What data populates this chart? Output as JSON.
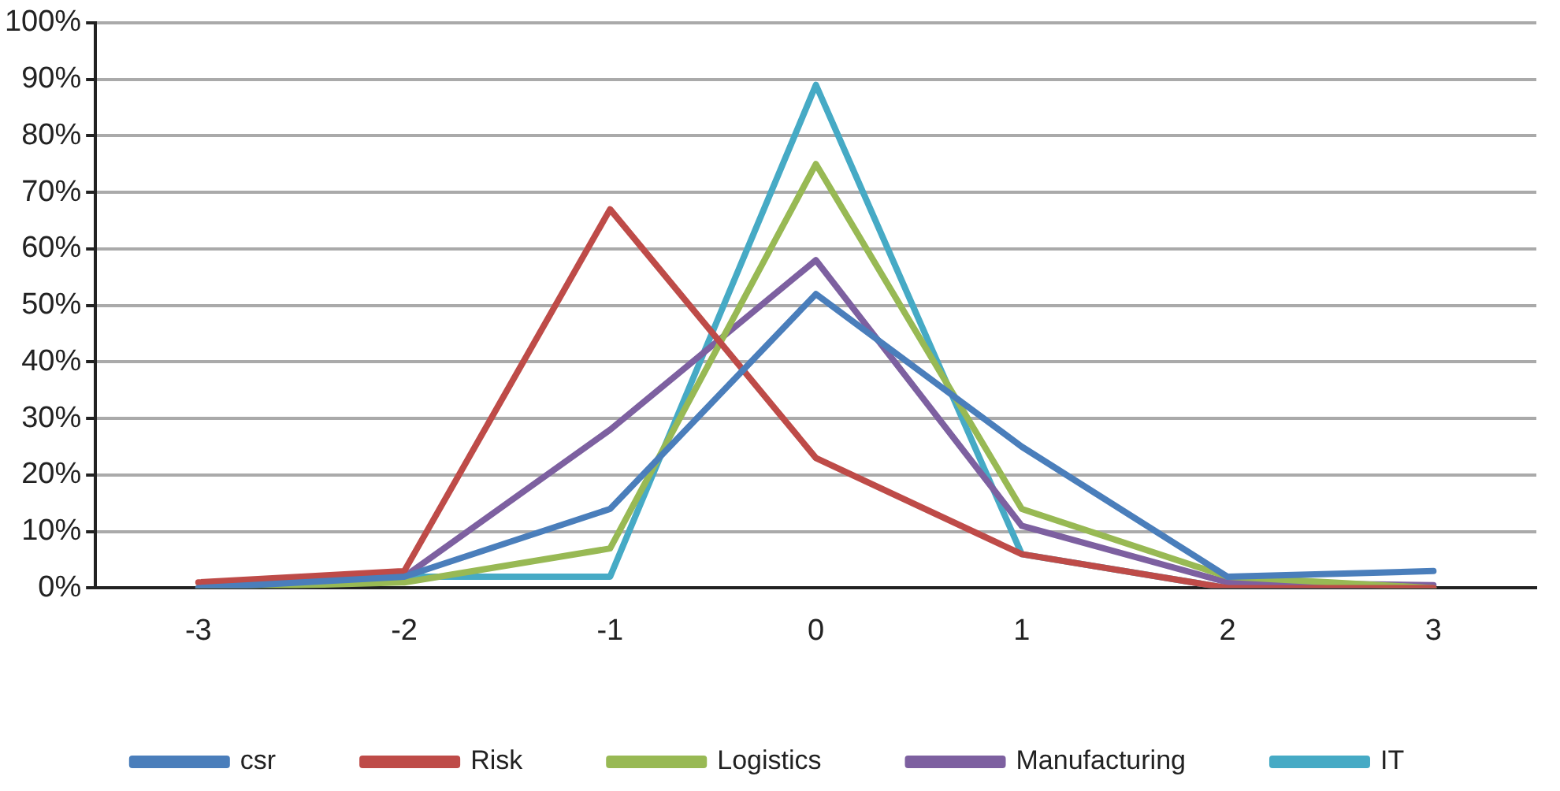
{
  "chart_data": {
    "type": "line",
    "categories": [
      "-3",
      "-2",
      "-1",
      "0",
      "1",
      "2",
      "3"
    ],
    "series": [
      {
        "name": "csr",
        "color": "#4a7ebb",
        "values": [
          0,
          2,
          14,
          52,
          25,
          2,
          3
        ]
      },
      {
        "name": "Risk",
        "color": "#be4b48",
        "values": [
          1,
          3,
          67,
          23,
          6,
          0,
          0
        ]
      },
      {
        "name": "Logistics",
        "color": "#98b954",
        "values": [
          0,
          1,
          7,
          75,
          14,
          2,
          0
        ]
      },
      {
        "name": "Manufacturing",
        "color": "#7d60a0",
        "values": [
          0,
          2,
          28,
          58,
          11,
          1,
          0.5
        ]
      },
      {
        "name": "IT",
        "color": "#46aac5",
        "values": [
          0,
          2,
          2,
          89,
          6,
          0,
          0
        ]
      }
    ],
    "ylim": [
      0,
      100
    ],
    "yticks": [
      {
        "value": 0,
        "label": "0%"
      },
      {
        "value": 10,
        "label": "10%"
      },
      {
        "value": 20,
        "label": "20%"
      },
      {
        "value": 30,
        "label": "30%"
      },
      {
        "value": 40,
        "label": "40%"
      },
      {
        "value": 50,
        "label": "50%"
      },
      {
        "value": 60,
        "label": "60%"
      },
      {
        "value": 70,
        "label": "70%"
      },
      {
        "value": 80,
        "label": "80%"
      },
      {
        "value": 90,
        "label": "90%"
      },
      {
        "value": 100,
        "label": "100%"
      }
    ],
    "grid": "y",
    "legend": "bottom",
    "marker": "none",
    "line_style": "solid"
  }
}
